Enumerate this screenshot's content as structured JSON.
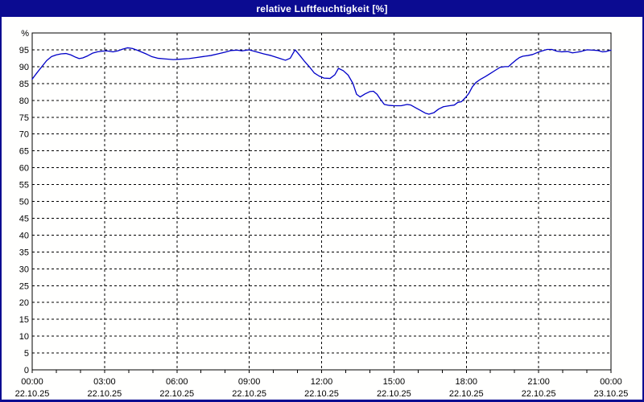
{
  "window": {
    "title": "relative Luftfeuchtigkeit [%]"
  },
  "colors": {
    "titlebar_bg": "#0b0b91",
    "title_text": "#ffffff",
    "window_border": "#0b0b91",
    "plot_background": "#fffffe",
    "grid_line": "#000000",
    "axis_line": "#000000",
    "label_text": "#000000",
    "series_line": "#0000c8"
  },
  "chart_data": {
    "type": "line",
    "title": "relative Luftfeuchtigkeit [%]",
    "ylabel": "%",
    "y_unit_label": "%",
    "ylim": [
      0,
      100
    ],
    "y_tick_step": 5,
    "y_tick_labels": [
      "0",
      "5",
      "10",
      "15",
      "20",
      "25",
      "30",
      "35",
      "40",
      "45",
      "50",
      "55",
      "60",
      "65",
      "70",
      "75",
      "80",
      "85",
      "90",
      "95"
    ],
    "xlim_hours": [
      0,
      24
    ],
    "x_minor_tick_every_hours": 1,
    "x_major_ticks": [
      {
        "hour": 0,
        "time": "00:00",
        "date": "22.10.25"
      },
      {
        "hour": 3,
        "time": "03:00",
        "date": "22.10.25"
      },
      {
        "hour": 6,
        "time": "06:00",
        "date": "22.10.25"
      },
      {
        "hour": 9,
        "time": "09:00",
        "date": "22.10.25"
      },
      {
        "hour": 12,
        "time": "12:00",
        "date": "22.10.25"
      },
      {
        "hour": 15,
        "time": "15:00",
        "date": "22.10.25"
      },
      {
        "hour": 18,
        "time": "18:00",
        "date": "22.10.25"
      },
      {
        "hour": 21,
        "time": "21:00",
        "date": "22.10.25"
      },
      {
        "hour": 24,
        "time": "00:00",
        "date": "23.10.25"
      }
    ],
    "grid": "dashed",
    "legend_position": "none",
    "series": [
      {
        "name": "relative Luftfeuchtigkeit",
        "unit": "%",
        "points": [
          [
            0,
            86.3
          ],
          [
            0.2,
            88.2
          ],
          [
            0.4,
            90
          ],
          [
            0.6,
            91.8
          ],
          [
            0.8,
            93
          ],
          [
            1,
            93.5
          ],
          [
            1.2,
            93.8
          ],
          [
            1.4,
            93.9
          ],
          [
            1.6,
            93.5
          ],
          [
            1.8,
            92.8
          ],
          [
            1.95,
            92.4
          ],
          [
            2.1,
            92.6
          ],
          [
            2.3,
            93.2
          ],
          [
            2.5,
            94
          ],
          [
            2.7,
            94.4
          ],
          [
            2.9,
            94.6
          ],
          [
            3.1,
            94.7
          ],
          [
            3.35,
            94.4
          ],
          [
            3.55,
            94.7
          ],
          [
            3.75,
            95.2
          ],
          [
            3.95,
            95.6
          ],
          [
            4.15,
            95.4
          ],
          [
            4.35,
            94.9
          ],
          [
            4.55,
            94.3
          ],
          [
            4.75,
            93.7
          ],
          [
            4.95,
            93
          ],
          [
            5.2,
            92.5
          ],
          [
            5.5,
            92.3
          ],
          [
            5.85,
            92.1
          ],
          [
            6.1,
            92.2
          ],
          [
            6.5,
            92.4
          ],
          [
            6.8,
            92.7
          ],
          [
            7.1,
            93
          ],
          [
            7.4,
            93.3
          ],
          [
            7.7,
            93.8
          ],
          [
            8,
            94.3
          ],
          [
            8.25,
            94.8
          ],
          [
            8.5,
            94.9
          ],
          [
            8.7,
            94.7
          ],
          [
            8.9,
            94.9
          ],
          [
            9,
            95
          ],
          [
            9.3,
            94.4
          ],
          [
            9.6,
            93.8
          ],
          [
            9.9,
            93.3
          ],
          [
            10.2,
            92.6
          ],
          [
            10.5,
            91.9
          ],
          [
            10.7,
            92.5
          ],
          [
            10.9,
            95
          ],
          [
            11.1,
            93.3
          ],
          [
            11.3,
            91.5
          ],
          [
            11.5,
            89.9
          ],
          [
            11.7,
            88.1
          ],
          [
            11.9,
            87.2
          ],
          [
            12.1,
            86.6
          ],
          [
            12.35,
            86.5
          ],
          [
            12.55,
            87.6
          ],
          [
            12.7,
            89.5
          ],
          [
            12.9,
            88.8
          ],
          [
            13.1,
            87.5
          ],
          [
            13.3,
            85
          ],
          [
            13.45,
            81.8
          ],
          [
            13.6,
            81
          ],
          [
            13.8,
            81.9
          ],
          [
            14,
            82.6
          ],
          [
            14.15,
            82.7
          ],
          [
            14.3,
            81.8
          ],
          [
            14.45,
            80.2
          ],
          [
            14.6,
            78.8
          ],
          [
            14.8,
            78.5
          ],
          [
            15,
            78.4
          ],
          [
            15.3,
            78.4
          ],
          [
            15.55,
            78.8
          ],
          [
            15.7,
            78.6
          ],
          [
            15.9,
            77.8
          ],
          [
            16.1,
            77
          ],
          [
            16.3,
            76.2
          ],
          [
            16.45,
            75.9
          ],
          [
            16.65,
            76.3
          ],
          [
            16.85,
            77.4
          ],
          [
            17.05,
            78.1
          ],
          [
            17.3,
            78.4
          ],
          [
            17.5,
            78.6
          ],
          [
            17.65,
            79.4
          ],
          [
            17.8,
            79.6
          ],
          [
            17.95,
            80.7
          ],
          [
            18.1,
            82
          ],
          [
            18.25,
            84
          ],
          [
            18.4,
            85.3
          ],
          [
            18.6,
            86.3
          ],
          [
            18.8,
            87.1
          ],
          [
            19,
            88
          ],
          [
            19.2,
            88.9
          ],
          [
            19.4,
            89.8
          ],
          [
            19.6,
            90
          ],
          [
            19.75,
            90
          ],
          [
            19.9,
            91
          ],
          [
            20.05,
            91.9
          ],
          [
            20.2,
            92.7
          ],
          [
            20.35,
            93.1
          ],
          [
            20.55,
            93.3
          ],
          [
            20.75,
            93.6
          ],
          [
            20.95,
            94.2
          ],
          [
            21.15,
            94.7
          ],
          [
            21.35,
            95.1
          ],
          [
            21.55,
            95.1
          ],
          [
            21.75,
            94.6
          ],
          [
            21.95,
            94.4
          ],
          [
            22.2,
            94.5
          ],
          [
            22.4,
            94.1
          ],
          [
            22.6,
            94.3
          ],
          [
            22.75,
            94.5
          ],
          [
            23,
            95
          ],
          [
            23.25,
            94.9
          ],
          [
            23.45,
            94.8
          ],
          [
            23.65,
            94.4
          ],
          [
            23.8,
            94.5
          ],
          [
            24,
            94.9
          ]
        ]
      }
    ]
  }
}
